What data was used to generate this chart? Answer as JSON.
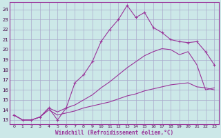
{
  "xlabel": "Windchill (Refroidissement éolien,°C)",
  "bg_color": "#cce8e8",
  "grid_color": "#aaaacc",
  "line_color": "#993399",
  "x_min": -0.5,
  "x_max": 23.5,
  "y_min": 12.6,
  "y_max": 24.7,
  "ytick_vals": [
    13,
    14,
    15,
    16,
    17,
    18,
    19,
    20,
    21,
    22,
    23,
    24
  ],
  "xtick_vals": [
    0,
    1,
    2,
    3,
    4,
    5,
    6,
    7,
    8,
    9,
    10,
    11,
    12,
    13,
    14,
    15,
    16,
    17,
    18,
    19,
    20,
    21,
    22,
    23
  ],
  "line1_x": [
    0,
    1,
    2,
    3,
    4,
    5,
    6,
    7,
    8,
    9,
    10,
    11,
    12,
    13,
    14,
    15,
    16,
    17,
    18,
    19,
    20,
    21,
    22,
    23
  ],
  "line1_y": [
    13.5,
    13.0,
    13.0,
    13.3,
    14.2,
    13.0,
    14.2,
    16.7,
    17.5,
    18.8,
    20.8,
    22.0,
    23.0,
    24.4,
    23.2,
    23.7,
    22.2,
    21.7,
    21.0,
    20.8,
    20.7,
    20.8,
    19.8,
    18.5
  ],
  "line2_x": [
    0,
    1,
    2,
    3,
    4,
    5,
    6,
    7,
    8,
    9,
    10,
    11,
    12,
    13,
    14,
    15,
    16,
    17,
    18,
    19,
    20,
    21,
    22,
    23
  ],
  "line2_y": [
    13.5,
    13.0,
    13.0,
    13.3,
    14.2,
    13.8,
    14.2,
    14.5,
    15.0,
    15.5,
    16.2,
    16.8,
    17.5,
    18.2,
    18.8,
    19.4,
    19.8,
    20.1,
    20.0,
    19.5,
    19.8,
    18.5,
    16.0,
    16.2
  ],
  "line3_x": [
    0,
    1,
    2,
    3,
    4,
    5,
    6,
    7,
    8,
    9,
    10,
    11,
    12,
    13,
    14,
    15,
    16,
    17,
    18,
    19,
    20,
    21,
    22,
    23
  ],
  "line3_y": [
    13.5,
    13.0,
    13.0,
    13.3,
    14.0,
    13.5,
    13.7,
    13.9,
    14.2,
    14.4,
    14.6,
    14.8,
    15.1,
    15.4,
    15.6,
    15.9,
    16.1,
    16.3,
    16.5,
    16.6,
    16.7,
    16.3,
    16.2,
    16.0
  ]
}
